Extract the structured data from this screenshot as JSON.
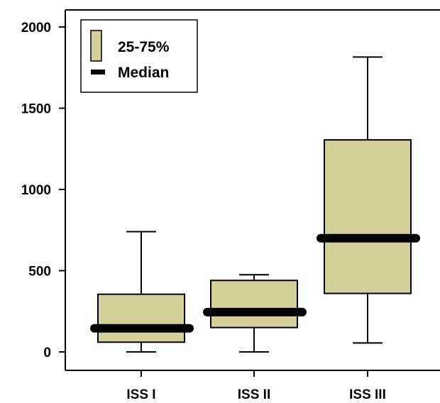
{
  "chart_data": {
    "type": "box",
    "title": "",
    "xlabel": "",
    "ylabel": "",
    "ylim": [
      -120,
      2110
    ],
    "yticks": [
      0,
      500,
      1000,
      1500,
      2000
    ],
    "categories": [
      "ISS I",
      "ISS II",
      "ISS III"
    ],
    "boxes": [
      {
        "category": "ISS I",
        "min": 0,
        "q1": 60,
        "median": 145,
        "q3": 355,
        "max": 740
      },
      {
        "category": "ISS II",
        "min": 0,
        "q1": 150,
        "median": 245,
        "q3": 440,
        "max": 475
      },
      {
        "category": "ISS III",
        "min": 55,
        "q1": 360,
        "median": 700,
        "q3": 1305,
        "max": 1815
      }
    ],
    "legend": {
      "position": "top-left",
      "items": [
        {
          "label": "25-75%",
          "symbol": "box"
        },
        {
          "label": "Median",
          "symbol": "line"
        }
      ]
    },
    "colors": {
      "box_fill": "#d4cf9b",
      "line": "#000000"
    },
    "grid": false
  }
}
